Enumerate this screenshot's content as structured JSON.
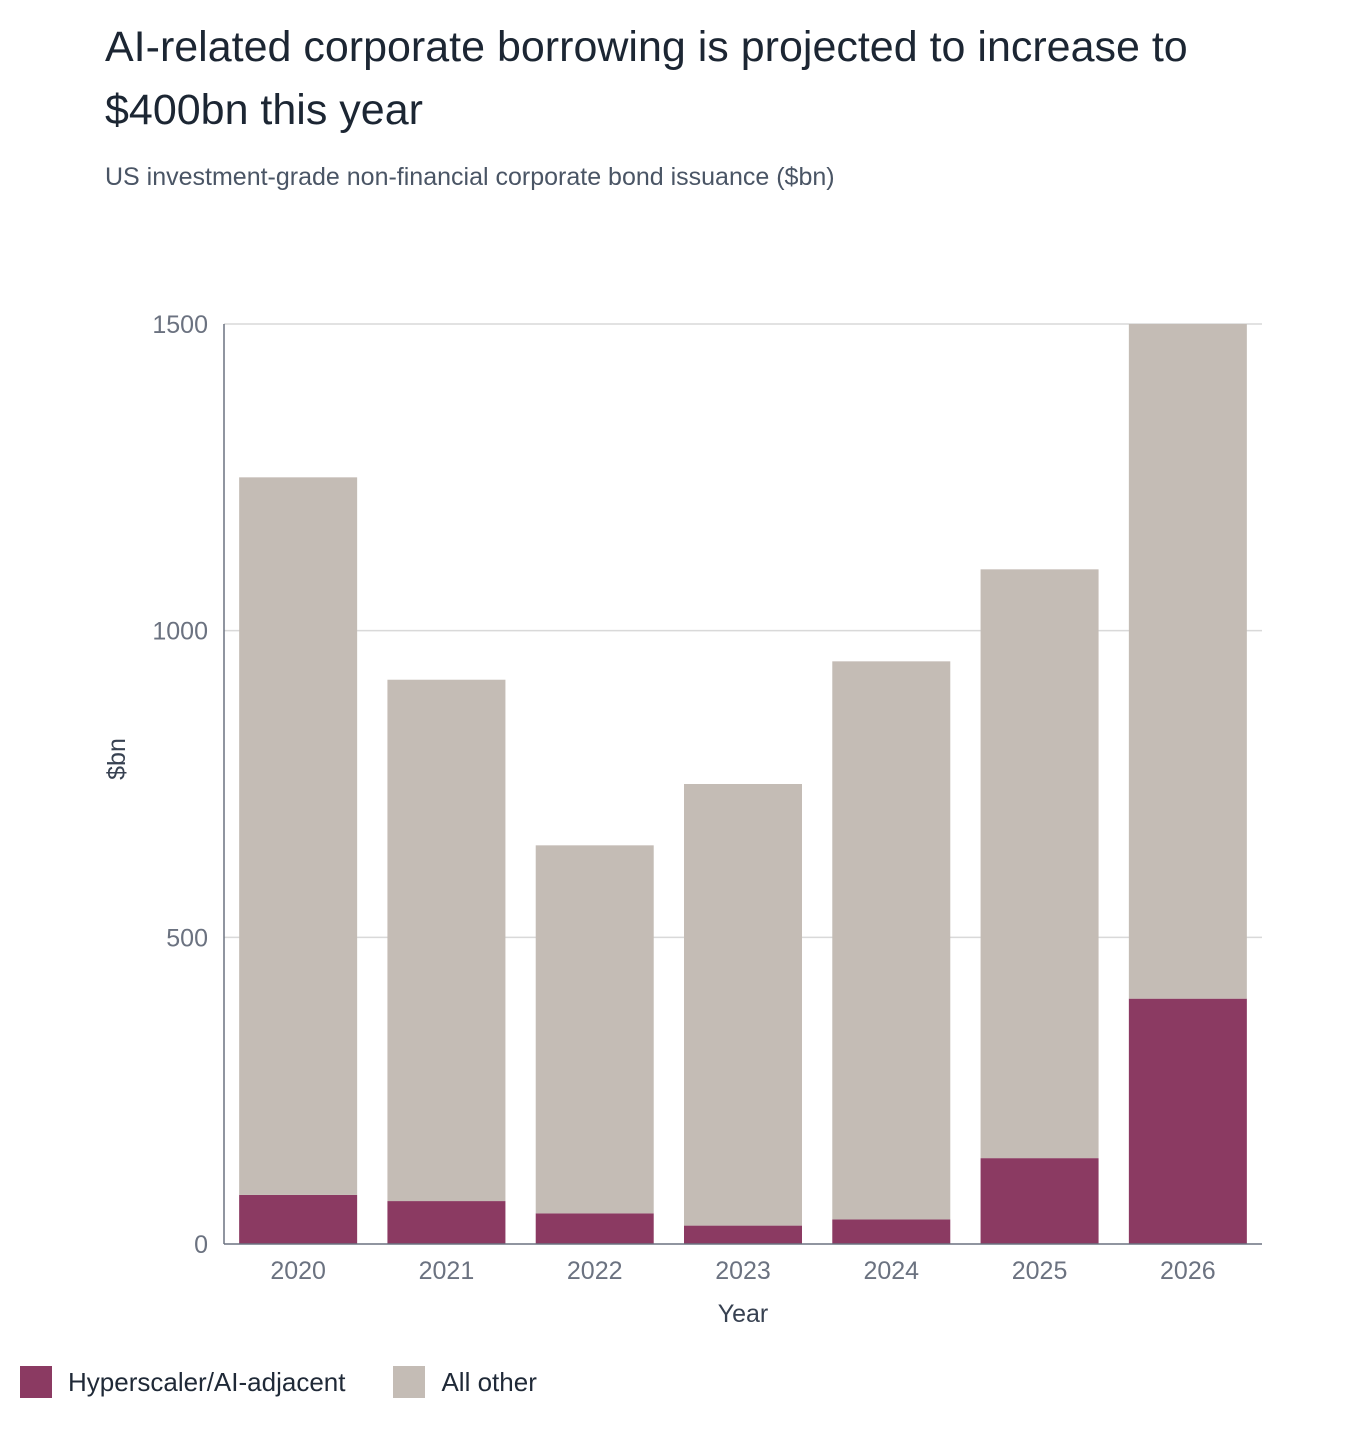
{
  "title": "AI-related corporate borrowing is projected to increase to $400bn this year",
  "subtitle": "US investment-grade non-financial corporate bond issuance ($bn)",
  "colors": {
    "hyperscaler": "#8b3a62",
    "other": "#c4bcb5",
    "grid": "#d9d9d9",
    "axis": "#6b7280"
  },
  "chart_data": {
    "type": "bar",
    "stacked": true,
    "title": "AI-related corporate borrowing is projected to increase to $400bn this year",
    "subtitle": "US investment-grade non-financial corporate bond issuance ($bn)",
    "xlabel": "Year",
    "ylabel": "$bn",
    "categories": [
      "2020",
      "2021",
      "2022",
      "2023",
      "2024",
      "2025",
      "2026"
    ],
    "series": [
      {
        "name": "Hyperscaler/AI-adjacent",
        "values": [
          80,
          70,
          50,
          30,
          40,
          140,
          400
        ]
      },
      {
        "name": "All other",
        "values": [
          1170,
          850,
          600,
          720,
          910,
          960,
          1100
        ]
      }
    ],
    "ylim": [
      0,
      1500
    ],
    "yticks": [
      0,
      500,
      1000,
      1500
    ],
    "grid": true,
    "legend_position": "bottom-left"
  },
  "legend": {
    "items": [
      {
        "label": "Hyperscaler/AI-adjacent"
      },
      {
        "label": "All other"
      }
    ]
  }
}
